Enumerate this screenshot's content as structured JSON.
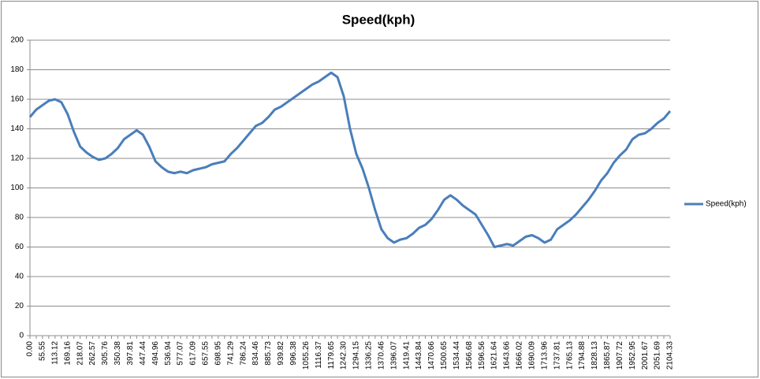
{
  "chart_data": {
    "type": "line",
    "title": "Speed(kph)",
    "categories": [
      "0.00",
      null,
      "55.55",
      null,
      "113.12",
      null,
      "169.16",
      null,
      "218.07",
      null,
      "262.57",
      null,
      "305.76",
      null,
      "350.38",
      null,
      "397.81",
      null,
      "447.44",
      null,
      "494.96",
      null,
      "536.94",
      null,
      "577.07",
      null,
      "617.09",
      null,
      "657.55",
      null,
      "698.95",
      null,
      "741.29",
      null,
      "786.24",
      null,
      "834.46",
      null,
      "885.73",
      null,
      "939.82",
      null,
      "996.38",
      null,
      "1055.26",
      null,
      "1116.37",
      null,
      "1179.65",
      null,
      "1242.30",
      null,
      "1294.15",
      null,
      "1336.25",
      null,
      "1370.46",
      null,
      "1396.07",
      null,
      "1419.41",
      null,
      "1443.84",
      null,
      "1470.66",
      null,
      "1500.65",
      null,
      "1534.44",
      null,
      "1566.68",
      null,
      "1596.56",
      null,
      "1621.64",
      null,
      "1643.66",
      null,
      "1666.02",
      null,
      "1690.09",
      null,
      "1713.96",
      null,
      "1737.81",
      null,
      "1765.13",
      null,
      "1794.88",
      null,
      "1828.13",
      null,
      "1865.87",
      null,
      "1907.72",
      null,
      "1952.95",
      null,
      "2001.67",
      null,
      "2051.69",
      null,
      "2104.33"
    ],
    "series": [
      {
        "name": "Speed(kph)",
        "color": "#4a7ebb",
        "values": [
          148,
          153,
          156,
          159,
          160,
          158,
          150,
          138,
          128,
          124,
          121,
          119,
          120,
          123,
          127,
          133,
          136,
          139,
          136,
          128,
          118,
          114,
          111,
          110,
          111,
          110,
          112,
          113,
          114,
          116,
          117,
          118,
          123,
          127,
          132,
          137,
          142,
          144,
          148,
          153,
          155,
          158,
          161,
          164,
          167,
          170,
          172,
          175,
          178,
          175,
          162,
          140,
          123,
          113,
          100,
          85,
          72,
          66,
          63,
          65,
          66,
          69,
          73,
          75,
          79,
          85,
          92,
          95,
          92,
          88,
          85,
          82,
          75,
          68,
          60,
          61,
          62,
          61,
          64,
          67,
          68,
          66,
          63,
          65,
          72,
          75,
          78,
          82,
          87,
          92,
          98,
          105,
          110,
          117,
          122,
          126,
          133,
          136,
          137,
          140,
          144,
          147,
          152
        ]
      }
    ],
    "ylim": [
      0,
      200
    ],
    "yticks": [
      0,
      20,
      40,
      60,
      80,
      100,
      120,
      140,
      160,
      180,
      200
    ],
    "grid": true,
    "legend": "right"
  }
}
